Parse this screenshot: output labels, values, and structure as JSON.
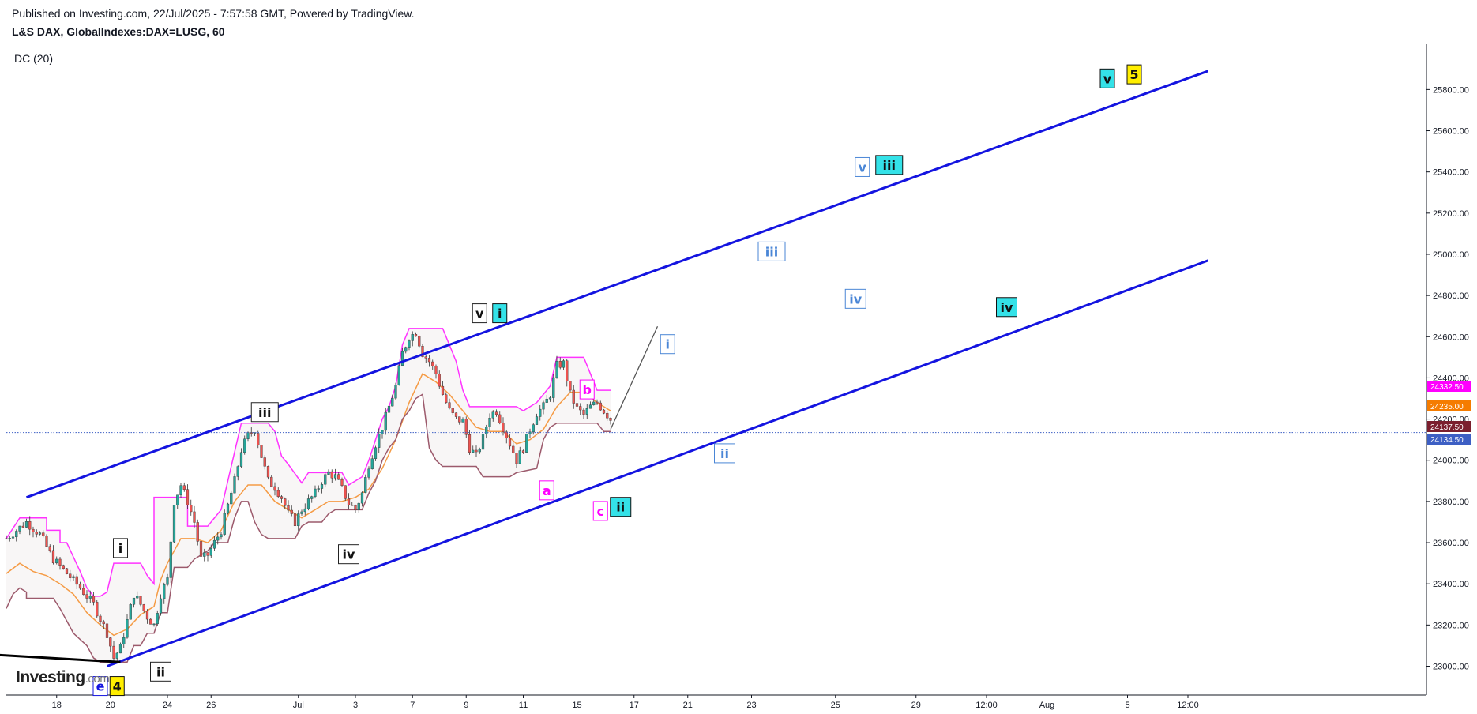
{
  "header": {
    "published": "Published on Investing.com, 22/Jul/2025 - 7:57:58 GMT, Powered by TradingView.",
    "symbol": "L&S DAX, GlobalIndexes:DAX=LUSG, 60",
    "indicator": "DC (20)"
  },
  "logo": {
    "main": "Investing",
    "suffix": ".com"
  },
  "colors": {
    "channel": "#1414e0",
    "upper_band": "#ff33ff",
    "middle_band": "#f59b45",
    "lower_band": "#9c5a6c",
    "candle_up": "#26a69a",
    "candle_down": "#ef5350",
    "cyan_badge": "#34e2e8",
    "yellow_badge": "#ffee00",
    "magenta_label": "#ff00ff",
    "light_blue_label": "#4a86d6"
  },
  "chart_data": {
    "type": "candlestick",
    "title": "L&S DAX, GlobalIndexes:DAX=LUSG, 60",
    "indicator": "DC (20)",
    "x_tick_labels": [
      "18",
      "20",
      "24",
      "26",
      "Jul",
      "3",
      "7",
      "9",
      "11",
      "15",
      "17",
      "21",
      "23",
      "25",
      "29",
      "12:00",
      "Aug",
      "5",
      "12:00"
    ],
    "y_tick_labels": [
      "23000.00",
      "23200.00",
      "23400.00",
      "23600.00",
      "23800.00",
      "24000.00",
      "24200.00",
      "24400.00",
      "24600.00",
      "24800.00",
      "25000.00",
      "25200.00",
      "25400.00",
      "25600.00",
      "25800.00"
    ],
    "ylim": [
      22860,
      26020
    ],
    "price_labels": [
      {
        "value": "24332.50",
        "color": "#ff00ff"
      },
      {
        "value": "24235.00",
        "color": "#f57c00"
      },
      {
        "value": "24137.50",
        "color": "#7b1f2e"
      },
      {
        "value": "24134.50",
        "color": "#3d5fc4"
      }
    ],
    "current_price": 24134.5,
    "close_path": [
      [
        0,
        23620
      ],
      [
        3,
        23700
      ],
      [
        5,
        23640
      ],
      [
        7,
        23520
      ],
      [
        9,
        23450
      ],
      [
        11,
        23380
      ],
      [
        13,
        23300
      ],
      [
        15,
        23160
      ],
      [
        16,
        23040
      ],
      [
        17,
        23090
      ],
      [
        18,
        23220
      ],
      [
        19,
        23350
      ],
      [
        20,
        23300
      ],
      [
        21,
        23240
      ],
      [
        22,
        23200
      ],
      [
        23,
        23350
      ],
      [
        24,
        23420
      ],
      [
        25,
        23800
      ],
      [
        26,
        23880
      ],
      [
        27,
        23800
      ],
      [
        28,
        23700
      ],
      [
        29,
        23520
      ],
      [
        30,
        23540
      ],
      [
        31,
        23600
      ],
      [
        32,
        23660
      ],
      [
        33,
        23780
      ],
      [
        34,
        23900
      ],
      [
        35,
        24050
      ],
      [
        36,
        24120
      ],
      [
        37,
        24150
      ],
      [
        38,
        24020
      ],
      [
        39,
        23900
      ],
      [
        40,
        23870
      ],
      [
        41,
        23820
      ],
      [
        42,
        23740
      ],
      [
        43,
        23700
      ],
      [
        44,
        23760
      ],
      [
        45,
        23800
      ],
      [
        46,
        23840
      ],
      [
        47,
        23900
      ],
      [
        48,
        23940
      ],
      [
        49,
        23920
      ],
      [
        50,
        23860
      ],
      [
        51,
        23790
      ],
      [
        52,
        23760
      ],
      [
        53,
        23840
      ],
      [
        54,
        23980
      ],
      [
        55,
        24080
      ],
      [
        56,
        24160
      ],
      [
        57,
        24260
      ],
      [
        58,
        24360
      ],
      [
        59,
        24520
      ],
      [
        60,
        24600
      ],
      [
        61,
        24620
      ],
      [
        62,
        24520
      ],
      [
        63,
        24480
      ],
      [
        64,
        24420
      ],
      [
        65,
        24320
      ],
      [
        66,
        24240
      ],
      [
        67,
        24200
      ],
      [
        68,
        24190
      ],
      [
        69,
        24060
      ],
      [
        70,
        24020
      ],
      [
        71,
        24110
      ],
      [
        72,
        24220
      ],
      [
        73,
        24240
      ],
      [
        74,
        24160
      ],
      [
        75,
        24080
      ],
      [
        76,
        24000
      ],
      [
        77,
        24060
      ],
      [
        78,
        24150
      ],
      [
        79,
        24230
      ],
      [
        80,
        24260
      ],
      [
        81,
        24320
      ],
      [
        82,
        24460
      ],
      [
        83,
        24470
      ],
      [
        84,
        24320
      ],
      [
        85,
        24250
      ],
      [
        86,
        24220
      ],
      [
        87,
        24260
      ],
      [
        88,
        24280
      ],
      [
        89,
        24240
      ],
      [
        90,
        24200
      ]
    ],
    "donchian_upper": [
      [
        0,
        23620
      ],
      [
        2,
        23720
      ],
      [
        6,
        23720
      ],
      [
        6,
        23660
      ],
      [
        8,
        23660
      ],
      [
        8,
        23600
      ],
      [
        9,
        23600
      ],
      [
        10,
        23530
      ],
      [
        11,
        23460
      ],
      [
        12,
        23380
      ],
      [
        13,
        23340
      ],
      [
        14,
        23340
      ],
      [
        15,
        23360
      ],
      [
        16,
        23500
      ],
      [
        20,
        23500
      ],
      [
        21,
        23440
      ],
      [
        22,
        23400
      ],
      [
        22,
        23820
      ],
      [
        27,
        23820
      ],
      [
        27,
        23680
      ],
      [
        30,
        23680
      ],
      [
        31,
        23720
      ],
      [
        32,
        23760
      ],
      [
        33,
        23900
      ],
      [
        34,
        24040
      ],
      [
        35,
        24180
      ],
      [
        39,
        24180
      ],
      [
        40,
        24140
      ],
      [
        41,
        24020
      ],
      [
        42,
        23980
      ],
      [
        44,
        23890
      ],
      [
        45,
        23940
      ],
      [
        50,
        23940
      ],
      [
        51,
        23880
      ],
      [
        53,
        23920
      ],
      [
        54,
        24000
      ],
      [
        56,
        24200
      ],
      [
        57,
        24260
      ],
      [
        58,
        24360
      ],
      [
        59,
        24560
      ],
      [
        60,
        24640
      ],
      [
        65,
        24640
      ],
      [
        67,
        24480
      ],
      [
        68,
        24340
      ],
      [
        69,
        24260
      ],
      [
        76,
        24260
      ],
      [
        77,
        24240
      ],
      [
        79,
        24280
      ],
      [
        81,
        24360
      ],
      [
        82,
        24500
      ],
      [
        86,
        24500
      ],
      [
        87,
        24420
      ],
      [
        88,
        24340
      ],
      [
        90,
        24340
      ]
    ],
    "donchian_middle": [
      [
        0,
        23450
      ],
      [
        2,
        23500
      ],
      [
        4,
        23460
      ],
      [
        6,
        23440
      ],
      [
        8,
        23400
      ],
      [
        10,
        23350
      ],
      [
        12,
        23260
      ],
      [
        14,
        23200
      ],
      [
        16,
        23150
      ],
      [
        18,
        23180
      ],
      [
        20,
        23250
      ],
      [
        22,
        23290
      ],
      [
        23,
        23420
      ],
      [
        24,
        23500
      ],
      [
        26,
        23620
      ],
      [
        28,
        23620
      ],
      [
        30,
        23600
      ],
      [
        32,
        23660
      ],
      [
        34,
        23800
      ],
      [
        36,
        23880
      ],
      [
        38,
        23880
      ],
      [
        40,
        23800
      ],
      [
        42,
        23760
      ],
      [
        44,
        23720
      ],
      [
        46,
        23760
      ],
      [
        48,
        23800
      ],
      [
        50,
        23800
      ],
      [
        52,
        23820
      ],
      [
        54,
        23860
      ],
      [
        56,
        23960
      ],
      [
        58,
        24100
      ],
      [
        60,
        24280
      ],
      [
        62,
        24420
      ],
      [
        64,
        24380
      ],
      [
        66,
        24320
      ],
      [
        68,
        24240
      ],
      [
        70,
        24160
      ],
      [
        72,
        24140
      ],
      [
        74,
        24140
      ],
      [
        76,
        24080
      ],
      [
        78,
        24100
      ],
      [
        80,
        24150
      ],
      [
        82,
        24260
      ],
      [
        84,
        24330
      ],
      [
        86,
        24330
      ],
      [
        88,
        24280
      ],
      [
        90,
        24240
      ]
    ],
    "donchian_lower": [
      [
        0,
        23280
      ],
      [
        1,
        23350
      ],
      [
        2,
        23380
      ],
      [
        3,
        23360
      ],
      [
        3,
        23330
      ],
      [
        7,
        23330
      ],
      [
        8,
        23280
      ],
      [
        9,
        23220
      ],
      [
        10,
        23160
      ],
      [
        12,
        23100
      ],
      [
        13,
        23040
      ],
      [
        14,
        23020
      ],
      [
        16,
        23020
      ],
      [
        18,
        23020
      ],
      [
        19,
        23100
      ],
      [
        20,
        23100
      ],
      [
        21,
        23160
      ],
      [
        22,
        23160
      ],
      [
        23,
        23260
      ],
      [
        24,
        23260
      ],
      [
        25,
        23480
      ],
      [
        27,
        23480
      ],
      [
        28,
        23520
      ],
      [
        30,
        23560
      ],
      [
        31,
        23600
      ],
      [
        33,
        23600
      ],
      [
        34,
        23720
      ],
      [
        35,
        23800
      ],
      [
        36,
        23800
      ],
      [
        37,
        23700
      ],
      [
        38,
        23640
      ],
      [
        39,
        23620
      ],
      [
        43,
        23620
      ],
      [
        44,
        23680
      ],
      [
        45,
        23700
      ],
      [
        47,
        23700
      ],
      [
        48,
        23740
      ],
      [
        49,
        23760
      ],
      [
        53,
        23760
      ],
      [
        54,
        23840
      ],
      [
        55,
        23900
      ],
      [
        56,
        24000
      ],
      [
        57,
        24060
      ],
      [
        58,
        24100
      ],
      [
        59,
        24200
      ],
      [
        60,
        24240
      ],
      [
        61,
        24300
      ],
      [
        62,
        24320
      ],
      [
        63,
        24060
      ],
      [
        64,
        24000
      ],
      [
        65,
        23970
      ],
      [
        66,
        23970
      ],
      [
        70,
        23970
      ],
      [
        71,
        23920
      ],
      [
        75,
        23920
      ],
      [
        76,
        23940
      ],
      [
        79,
        23960
      ],
      [
        80,
        24100
      ],
      [
        81,
        24160
      ],
      [
        82,
        24180
      ],
      [
        88,
        24180
      ],
      [
        89,
        24140
      ],
      [
        90,
        24140
      ]
    ],
    "channel_upper_line": {
      "from": [
        3,
        23820
      ],
      "to": [
        179,
        25890
      ]
    },
    "channel_lower_line": {
      "from": [
        15,
        23000
      ],
      "to": [
        179,
        24970
      ]
    },
    "lower_wedge_line": {
      "from": [
        -4,
        23060
      ],
      "to": [
        17,
        23020
      ]
    },
    "projection_line": {
      "from": [
        90,
        24150
      ],
      "to": [
        97,
        24650
      ]
    },
    "wave_labels": [
      {
        "text": "e",
        "x": 14,
        "y": 22900,
        "style": "box-blue"
      },
      {
        "text": "4",
        "x": 16.5,
        "y": 22900,
        "style": "yellow"
      },
      {
        "text": "i",
        "x": 17,
        "y": 23570,
        "style": "box-black"
      },
      {
        "text": "ii",
        "x": 23,
        "y": 22970,
        "style": "box-black"
      },
      {
        "text": "iii",
        "x": 38.5,
        "y": 24230,
        "style": "box-black"
      },
      {
        "text": "iv",
        "x": 51,
        "y": 23540,
        "style": "box-black"
      },
      {
        "text": "v",
        "x": 70.5,
        "y": 24710,
        "style": "box-black"
      },
      {
        "text": "i",
        "x": 73.5,
        "y": 24710,
        "style": "cyan"
      },
      {
        "text": "a",
        "x": 80.5,
        "y": 23850,
        "style": "magenta"
      },
      {
        "text": "b",
        "x": 86.5,
        "y": 24340,
        "style": "magenta"
      },
      {
        "text": "c",
        "x": 88.5,
        "y": 23750,
        "style": "magenta"
      },
      {
        "text": "ii",
        "x": 91.5,
        "y": 23770,
        "style": "cyan"
      },
      {
        "text": "i",
        "x": 98.5,
        "y": 24560,
        "style": "light-blue"
      },
      {
        "text": "ii",
        "x": 107,
        "y": 24030,
        "style": "light-blue"
      },
      {
        "text": "iii",
        "x": 114,
        "y": 25010,
        "style": "light-blue"
      },
      {
        "text": "iv",
        "x": 126.5,
        "y": 24780,
        "style": "light-blue"
      },
      {
        "text": "v",
        "x": 127.5,
        "y": 25420,
        "style": "light-blue"
      },
      {
        "text": "iii",
        "x": 131.5,
        "y": 25430,
        "style": "cyan"
      },
      {
        "text": "iv",
        "x": 149,
        "y": 24740,
        "style": "cyan"
      },
      {
        "text": "v",
        "x": 164,
        "y": 25850,
        "style": "cyan"
      },
      {
        "text": "5",
        "x": 168,
        "y": 25870,
        "style": "yellow"
      }
    ]
  }
}
